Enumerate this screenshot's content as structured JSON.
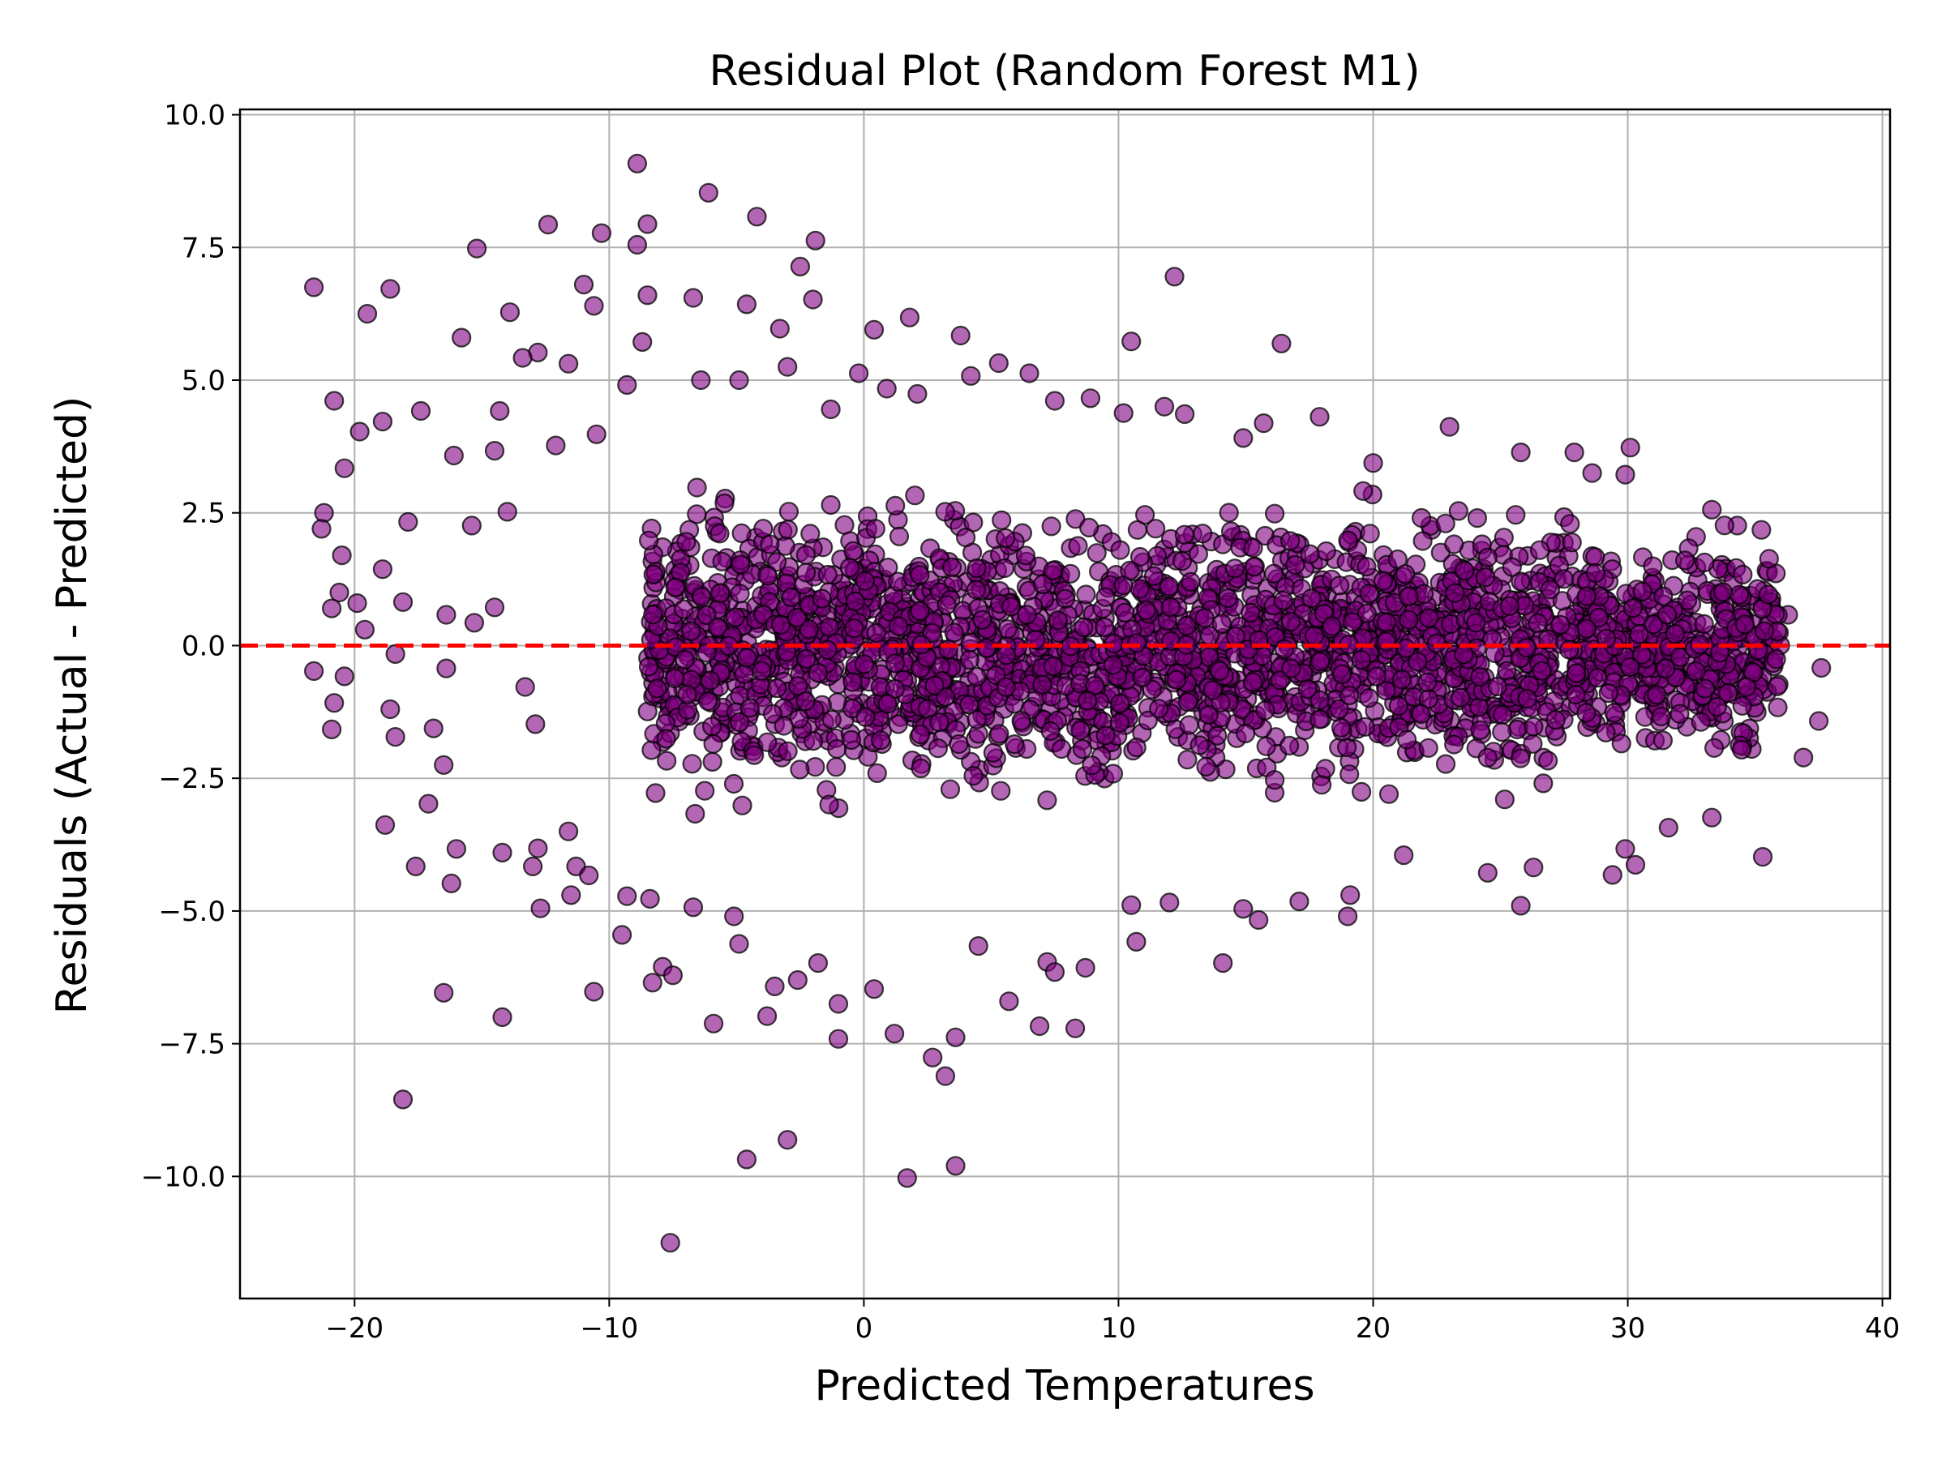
{
  "chart_data": {
    "type": "scatter",
    "title": "Residual Plot (Random Forest M1)",
    "xlabel": "Predicted Temperatures",
    "ylabel": "Residuals (Actual - Predicted)",
    "xlim": [
      -24.5,
      40.3
    ],
    "ylim": [
      -12.3,
      10.1
    ],
    "x_ticks": [
      -20,
      -10,
      0,
      10,
      20,
      30,
      40
    ],
    "x_tick_labels": [
      "−20",
      "−10",
      "0",
      "10",
      "20",
      "30",
      "40"
    ],
    "y_ticks": [
      -10.0,
      -7.5,
      -5.0,
      -2.5,
      0.0,
      2.5,
      5.0,
      7.5,
      10.0
    ],
    "y_tick_labels": [
      "−10.0",
      "−7.5",
      "−5.0",
      "−2.5",
      "0.0",
      "2.5",
      "5.0",
      "7.5",
      "10.0"
    ],
    "grid": true,
    "reference_line": {
      "y": 0.0,
      "color": "#ff0000",
      "style": "dashed"
    },
    "marker_face_color": "#800080",
    "marker_edge_color": "#000000",
    "marker_alpha": 0.6,
    "series": [
      {
        "points": [
          [
            -21.6,
            6.75
          ],
          [
            -19.5,
            6.25
          ],
          [
            -18.6,
            6.72
          ],
          [
            -15.8,
            5.8
          ],
          [
            -15.2,
            7.48
          ],
          [
            -13.9,
            6.28
          ],
          [
            -12.4,
            7.93
          ],
          [
            -11.0,
            6.8
          ],
          [
            -10.6,
            6.4
          ],
          [
            -10.3,
            7.77
          ],
          [
            -8.9,
            9.08
          ],
          [
            -8.5,
            7.94
          ],
          [
            -8.9,
            7.55
          ],
          [
            -6.1,
            8.53
          ],
          [
            -4.2,
            8.08
          ],
          [
            -2.5,
            7.14
          ],
          [
            -1.9,
            7.63
          ],
          [
            -2.0,
            6.52
          ],
          [
            0.4,
            5.95
          ],
          [
            1.8,
            6.18
          ],
          [
            -3.3,
            5.97
          ],
          [
            -6.7,
            6.55
          ],
          [
            -8.5,
            6.6
          ],
          [
            -4.6,
            6.43
          ],
          [
            10.5,
            5.73
          ],
          [
            16.4,
            5.69
          ],
          [
            12.2,
            6.95
          ],
          [
            3.8,
            5.84
          ],
          [
            6.5,
            5.13
          ],
          [
            -12.8,
            5.52
          ],
          [
            -13.4,
            5.42
          ],
          [
            -11.6,
            5.31
          ],
          [
            -14.3,
            4.42
          ],
          [
            -17.4,
            4.42
          ],
          [
            -18.9,
            4.22
          ],
          [
            -20.8,
            4.61
          ],
          [
            -19.8,
            4.03
          ],
          [
            -20.4,
            3.34
          ],
          [
            -16.1,
            3.58
          ],
          [
            -14.5,
            3.67
          ],
          [
            -21.2,
            2.5
          ],
          [
            -21.3,
            2.2
          ],
          [
            -20.5,
            1.7
          ],
          [
            -20.6,
            1.0
          ],
          [
            -20.9,
            0.7
          ],
          [
            -19.9,
            0.8
          ],
          [
            -19.6,
            0.3
          ],
          [
            -20.4,
            -0.58
          ],
          [
            -21.6,
            -0.48
          ],
          [
            -20.8,
            -1.08
          ],
          [
            -20.9,
            -1.58
          ],
          [
            -18.6,
            -1.2
          ],
          [
            -18.4,
            -1.72
          ],
          [
            -16.9,
            -1.56
          ],
          [
            -16.5,
            -2.25
          ],
          [
            -17.1,
            -2.98
          ],
          [
            -16.0,
            -3.83
          ],
          [
            -18.8,
            -3.38
          ],
          [
            -17.6,
            -4.16
          ],
          [
            -16.2,
            -4.48
          ],
          [
            -14.2,
            -3.9
          ],
          [
            -13.0,
            -4.16
          ],
          [
            -12.8,
            -3.82
          ],
          [
            -11.6,
            -3.5
          ],
          [
            -11.3,
            -4.16
          ],
          [
            -10.8,
            -4.33
          ],
          [
            -11.5,
            -4.7
          ],
          [
            -12.7,
            -4.95
          ],
          [
            -16.5,
            -6.54
          ],
          [
            -14.2,
            -7.0
          ],
          [
            -18.1,
            -8.55
          ],
          [
            -10.6,
            -6.52
          ],
          [
            -9.5,
            -5.45
          ],
          [
            -9.3,
            -4.72
          ],
          [
            -7.9,
            -6.05
          ],
          [
            -8.3,
            -6.35
          ],
          [
            -7.5,
            -6.21
          ],
          [
            -5.9,
            -7.12
          ],
          [
            -4.9,
            -5.62
          ],
          [
            -3.8,
            -6.98
          ],
          [
            -3.5,
            -6.42
          ],
          [
            -2.6,
            -6.3
          ],
          [
            -1.8,
            -5.98
          ],
          [
            -1.0,
            -6.75
          ],
          [
            -1.0,
            -7.41
          ],
          [
            0.4,
            -6.47
          ],
          [
            1.2,
            -7.31
          ],
          [
            2.7,
            -7.76
          ],
          [
            3.2,
            -8.11
          ],
          [
            3.6,
            -7.38
          ],
          [
            4.5,
            -5.66
          ],
          [
            5.7,
            -6.7
          ],
          [
            6.9,
            -7.17
          ],
          [
            7.2,
            -5.96
          ],
          [
            8.3,
            -7.21
          ],
          [
            8.7,
            -6.07
          ],
          [
            7.5,
            -6.15
          ],
          [
            10.7,
            -5.58
          ],
          [
            14.1,
            -5.98
          ],
          [
            10.5,
            -4.89
          ],
          [
            -7.6,
            -11.25
          ],
          [
            -4.6,
            -9.68
          ],
          [
            -3.0,
            -9.31
          ],
          [
            1.7,
            -10.03
          ],
          [
            3.6,
            -9.8
          ],
          [
            -8.4,
            -4.77
          ],
          [
            -6.7,
            -4.93
          ],
          [
            -5.1,
            -5.1
          ],
          [
            12.0,
            -4.84
          ],
          [
            14.9,
            -4.96
          ],
          [
            15.5,
            -5.17
          ],
          [
            17.1,
            -4.82
          ],
          [
            19.1,
            -4.7
          ],
          [
            19.0,
            -5.1
          ],
          [
            21.2,
            -3.95
          ],
          [
            24.5,
            -4.28
          ],
          [
            25.8,
            -4.9
          ],
          [
            26.3,
            -4.18
          ],
          [
            29.4,
            -4.32
          ],
          [
            30.3,
            -4.13
          ],
          [
            29.9,
            -3.83
          ],
          [
            31.6,
            -3.43
          ],
          [
            33.3,
            -3.24
          ],
          [
            35.3,
            -3.98
          ],
          [
            36.9,
            -2.11
          ],
          [
            37.5,
            -1.42
          ],
          [
            37.6,
            -0.42
          ],
          [
            36.3,
            0.58
          ],
          [
            34.3,
            2.26
          ],
          [
            33.3,
            2.56
          ],
          [
            30.1,
            3.73
          ],
          [
            29.9,
            3.22
          ],
          [
            28.6,
            3.25
          ],
          [
            27.9,
            3.64
          ],
          [
            25.8,
            3.64
          ],
          [
            23.0,
            4.12
          ],
          [
            20.0,
            3.44
          ],
          [
            17.9,
            4.31
          ],
          [
            15.7,
            4.19
          ],
          [
            14.9,
            3.91
          ],
          [
            12.6,
            4.36
          ],
          [
            11.8,
            4.5
          ],
          [
            10.2,
            4.38
          ],
          [
            8.9,
            4.66
          ],
          [
            7.5,
            4.61
          ],
          [
            5.3,
            5.32
          ],
          [
            4.2,
            5.08
          ],
          [
            2.1,
            4.74
          ],
          [
            0.9,
            4.84
          ],
          [
            -0.2,
            5.13
          ],
          [
            -1.3,
            4.45
          ],
          [
            -3.0,
            5.25
          ],
          [
            -4.9,
            5.0
          ],
          [
            -6.4,
            5.0
          ],
          [
            -8.7,
            5.72
          ],
          [
            -9.3,
            4.91
          ],
          [
            -10.5,
            3.98
          ],
          [
            -12.1,
            3.77
          ],
          [
            -14.0,
            2.52
          ],
          [
            -15.4,
            2.26
          ],
          [
            -17.9,
            2.33
          ],
          [
            -18.9,
            1.44
          ],
          [
            -18.1,
            0.82
          ],
          [
            -16.4,
            0.58
          ],
          [
            -15.3,
            0.43
          ],
          [
            -14.5,
            0.72
          ],
          [
            -18.4,
            -0.16
          ],
          [
            -16.4,
            -0.43
          ],
          [
            -13.3,
            -0.78
          ],
          [
            -12.9,
            -1.48
          ]
        ]
      }
    ]
  }
}
